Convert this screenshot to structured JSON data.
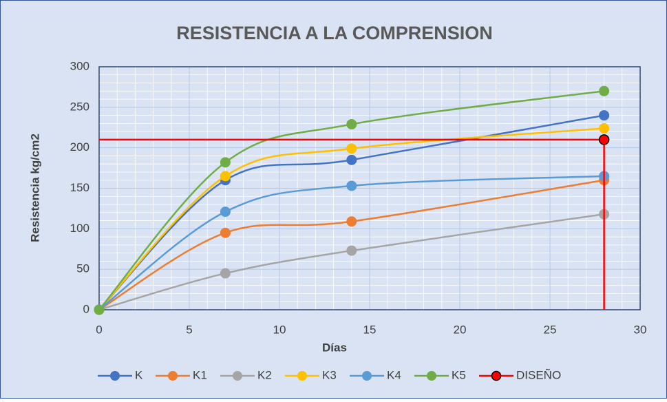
{
  "chart_data": {
    "type": "line",
    "smooth": true,
    "title": "RESISTENCIA A LA COMPRENSION",
    "x_label": "Días",
    "y_label": "Resistencia kg/cm2",
    "series": [
      {
        "name": "K",
        "color": "#4472c4",
        "x": [
          0,
          7,
          14,
          28
        ],
        "values": [
          0,
          160,
          185,
          240
        ],
        "markers": true
      },
      {
        "name": "K1",
        "color": "#ed7d31",
        "x": [
          0,
          7,
          14,
          28
        ],
        "values": [
          0,
          95,
          109,
          160
        ],
        "markers": true
      },
      {
        "name": "K2",
        "color": "#a5a5a5",
        "x": [
          0,
          7,
          14,
          28
        ],
        "values": [
          0,
          45,
          73,
          118
        ],
        "markers": true
      },
      {
        "name": "K3",
        "color": "#ffc000",
        "x": [
          0,
          7,
          14,
          28
        ],
        "values": [
          0,
          165,
          199,
          224
        ],
        "markers": true
      },
      {
        "name": "K4",
        "color": "#5b9bd5",
        "x": [
          0,
          7,
          14,
          28
        ],
        "values": [
          0,
          121,
          153,
          165
        ],
        "markers": true
      },
      {
        "name": "K5",
        "color": "#70ad47",
        "x": [
          0,
          7,
          14,
          28
        ],
        "values": [
          0,
          182,
          229,
          270
        ],
        "markers": true
      },
      {
        "name": "DISEÑO",
        "color": "#ff0000",
        "x": [
          0,
          28,
          28
        ],
        "values": [
          210,
          210,
          0
        ],
        "markers": false,
        "smooth": false,
        "marker_at": 1
      }
    ],
    "xlim": [
      0,
      30
    ],
    "xticks": [
      0,
      5,
      10,
      15,
      20,
      25,
      30
    ],
    "ylim": [
      0,
      300
    ],
    "yticks": [
      0,
      50,
      100,
      150,
      200,
      250,
      300
    ],
    "grid": true,
    "minor_grid": true,
    "legend": "bottom"
  }
}
